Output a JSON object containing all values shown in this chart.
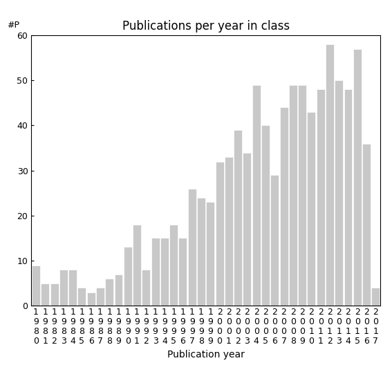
{
  "title": "Publications per year in class",
  "xlabel": "Publication year",
  "ylabel": "#P",
  "years": [
    1980,
    1981,
    1982,
    1983,
    1984,
    1985,
    1986,
    1987,
    1988,
    1989,
    1990,
    1991,
    1992,
    1993,
    1994,
    1995,
    1996,
    1997,
    1998,
    1999,
    2000,
    2001,
    2002,
    2003,
    2004,
    2005,
    2006,
    2007,
    2008,
    2009,
    2010,
    2011,
    2012,
    2013,
    2014,
    2015,
    2016,
    2017
  ],
  "values": [
    9,
    5,
    5,
    8,
    8,
    4,
    3,
    4,
    6,
    7,
    13,
    18,
    8,
    15,
    15,
    18,
    15,
    26,
    24,
    23,
    32,
    33,
    39,
    34,
    49,
    40,
    29,
    44,
    49,
    49,
    43,
    48,
    58,
    50,
    48,
    57,
    36,
    4
  ],
  "bar_color": "#c8c8c8",
  "bar_edge_color": "#ffffff",
  "ylim": [
    0,
    60
  ],
  "yticks": [
    0,
    10,
    20,
    30,
    40,
    50,
    60
  ],
  "background_color": "#ffffff",
  "title_fontsize": 12,
  "label_fontsize": 10,
  "tick_fontsize": 9
}
